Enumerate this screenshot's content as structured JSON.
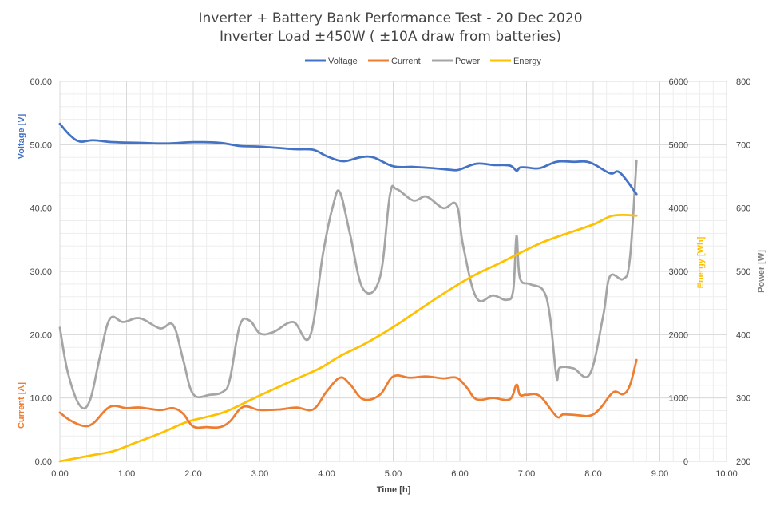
{
  "chart_data": {
    "type": "line",
    "title": "Inverter + Battery Bank Performance Test - 20 Dec 2020",
    "subtitle": "Inverter Load ±450W ( ±10A draw from batteries)",
    "xlabel": "Time [h]",
    "xlim": [
      0,
      10
    ],
    "x_ticks": [
      "0.00",
      "1.00",
      "2.00",
      "3.00",
      "4.00",
      "5.00",
      "6.00",
      "7.00",
      "8.00",
      "9.00",
      "10.00"
    ],
    "y_left": {
      "ylim": [
        0,
        60
      ],
      "ticks": [
        "0.00",
        "10.00",
        "20.00",
        "30.00",
        "40.00",
        "50.00",
        "60.00"
      ],
      "label_voltage": "Voltage [V]",
      "label_current": "Current [A]"
    },
    "y_energy": {
      "ylim": [
        0,
        6000
      ],
      "ticks": [
        "0",
        "1000",
        "2000",
        "3000",
        "4000",
        "5000",
        "6000"
      ],
      "label": "Energy [Wh]"
    },
    "y_power": {
      "ylim": [
        200,
        800
      ],
      "ticks": [
        "200",
        "300",
        "400",
        "500",
        "600",
        "700",
        "800"
      ],
      "label": "Power [W]"
    },
    "grid": true,
    "legend_position": "top",
    "series": [
      {
        "name": "Voltage",
        "axis": "left",
        "color": "#4472C4",
        "points": [
          [
            0.0,
            53.3
          ],
          [
            0.15,
            51.5
          ],
          [
            0.3,
            50.5
          ],
          [
            0.5,
            50.7
          ],
          [
            0.8,
            50.4
          ],
          [
            1.2,
            50.3
          ],
          [
            1.6,
            50.2
          ],
          [
            2.0,
            50.4
          ],
          [
            2.4,
            50.3
          ],
          [
            2.7,
            49.8
          ],
          [
            3.0,
            49.7
          ],
          [
            3.5,
            49.3
          ],
          [
            3.8,
            49.2
          ],
          [
            4.0,
            48.2
          ],
          [
            4.25,
            47.4
          ],
          [
            4.5,
            48.0
          ],
          [
            4.7,
            48.0
          ],
          [
            5.0,
            46.6
          ],
          [
            5.3,
            46.5
          ],
          [
            5.6,
            46.3
          ],
          [
            5.9,
            46.0
          ],
          [
            6.0,
            46.1
          ],
          [
            6.25,
            47.0
          ],
          [
            6.5,
            46.8
          ],
          [
            6.75,
            46.7
          ],
          [
            6.85,
            45.9
          ],
          [
            6.9,
            46.4
          ],
          [
            7.0,
            46.4
          ],
          [
            7.2,
            46.3
          ],
          [
            7.45,
            47.3
          ],
          [
            7.7,
            47.3
          ],
          [
            7.95,
            47.2
          ],
          [
            8.25,
            45.5
          ],
          [
            8.4,
            45.6
          ],
          [
            8.65,
            42.2
          ]
        ]
      },
      {
        "name": "Current",
        "axis": "left",
        "color": "#ED7D31",
        "points": [
          [
            0.0,
            7.7
          ],
          [
            0.15,
            6.5
          ],
          [
            0.35,
            5.6
          ],
          [
            0.5,
            6.0
          ],
          [
            0.75,
            8.6
          ],
          [
            1.0,
            8.4
          ],
          [
            1.2,
            8.5
          ],
          [
            1.5,
            8.1
          ],
          [
            1.7,
            8.4
          ],
          [
            1.85,
            7.5
          ],
          [
            2.0,
            5.5
          ],
          [
            2.2,
            5.4
          ],
          [
            2.4,
            5.4
          ],
          [
            2.55,
            6.3
          ],
          [
            2.75,
            8.6
          ],
          [
            3.0,
            8.1
          ],
          [
            3.3,
            8.2
          ],
          [
            3.55,
            8.5
          ],
          [
            3.8,
            8.2
          ],
          [
            4.0,
            11.0
          ],
          [
            4.2,
            13.2
          ],
          [
            4.35,
            12.2
          ],
          [
            4.55,
            9.8
          ],
          [
            4.8,
            10.5
          ],
          [
            5.0,
            13.4
          ],
          [
            5.25,
            13.2
          ],
          [
            5.5,
            13.4
          ],
          [
            5.75,
            13.1
          ],
          [
            5.95,
            13.2
          ],
          [
            6.1,
            11.7
          ],
          [
            6.25,
            9.8
          ],
          [
            6.5,
            10.0
          ],
          [
            6.75,
            9.8
          ],
          [
            6.85,
            12.1
          ],
          [
            6.9,
            10.5
          ],
          [
            7.0,
            10.5
          ],
          [
            7.2,
            10.3
          ],
          [
            7.45,
            7.1
          ],
          [
            7.55,
            7.4
          ],
          [
            7.75,
            7.3
          ],
          [
            7.95,
            7.2
          ],
          [
            8.1,
            8.3
          ],
          [
            8.3,
            10.9
          ],
          [
            8.45,
            10.6
          ],
          [
            8.55,
            12.0
          ],
          [
            8.65,
            16.0
          ]
        ]
      },
      {
        "name": "Power",
        "axis": "power",
        "color": "#A5A5A5",
        "points": [
          [
            0.0,
            411
          ],
          [
            0.12,
            340
          ],
          [
            0.3,
            288
          ],
          [
            0.45,
            296
          ],
          [
            0.6,
            365
          ],
          [
            0.75,
            425
          ],
          [
            0.95,
            420
          ],
          [
            1.2,
            426
          ],
          [
            1.5,
            410
          ],
          [
            1.7,
            415
          ],
          [
            1.85,
            360
          ],
          [
            2.0,
            306
          ],
          [
            2.25,
            305
          ],
          [
            2.45,
            310
          ],
          [
            2.55,
            330
          ],
          [
            2.7,
            415
          ],
          [
            2.85,
            422
          ],
          [
            3.0,
            402
          ],
          [
            3.2,
            404
          ],
          [
            3.5,
            420
          ],
          [
            3.75,
            397
          ],
          [
            3.95,
            530
          ],
          [
            4.1,
            605
          ],
          [
            4.2,
            625
          ],
          [
            4.35,
            560
          ],
          [
            4.55,
            472
          ],
          [
            4.8,
            490
          ],
          [
            4.95,
            620
          ],
          [
            5.05,
            630
          ],
          [
            5.3,
            612
          ],
          [
            5.5,
            618
          ],
          [
            5.75,
            600
          ],
          [
            5.95,
            605
          ],
          [
            6.05,
            540
          ],
          [
            6.25,
            458
          ],
          [
            6.5,
            462
          ],
          [
            6.7,
            455
          ],
          [
            6.8,
            470
          ],
          [
            6.85,
            556
          ],
          [
            6.9,
            490
          ],
          [
            7.05,
            480
          ],
          [
            7.25,
            470
          ],
          [
            7.35,
            430
          ],
          [
            7.45,
            333
          ],
          [
            7.5,
            348
          ],
          [
            7.7,
            347
          ],
          [
            7.95,
            338
          ],
          [
            8.15,
            430
          ],
          [
            8.25,
            492
          ],
          [
            8.45,
            488
          ],
          [
            8.55,
            520
          ],
          [
            8.65,
            675
          ]
        ]
      },
      {
        "name": "Energy",
        "axis": "energy",
        "color": "#FFC000",
        "points": [
          [
            0.0,
            0
          ],
          [
            0.5,
            100
          ],
          [
            0.8,
            160
          ],
          [
            1.1,
            280
          ],
          [
            1.5,
            440
          ],
          [
            1.9,
            620
          ],
          [
            2.2,
            700
          ],
          [
            2.5,
            790
          ],
          [
            3.0,
            1040
          ],
          [
            3.5,
            1280
          ],
          [
            3.9,
            1470
          ],
          [
            4.2,
            1660
          ],
          [
            4.6,
            1870
          ],
          [
            5.0,
            2120
          ],
          [
            5.4,
            2400
          ],
          [
            5.8,
            2680
          ],
          [
            6.2,
            2930
          ],
          [
            6.6,
            3130
          ],
          [
            6.9,
            3290
          ],
          [
            7.2,
            3440
          ],
          [
            7.5,
            3560
          ],
          [
            8.0,
            3740
          ],
          [
            8.3,
            3880
          ],
          [
            8.65,
            3880
          ]
        ]
      }
    ]
  }
}
